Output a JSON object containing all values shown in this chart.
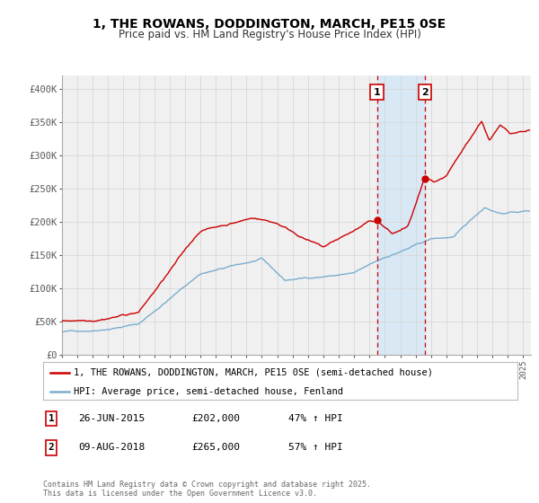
{
  "title": "1, THE ROWANS, DODDINGTON, MARCH, PE15 0SE",
  "subtitle": "Price paid vs. HM Land Registry's House Price Index (HPI)",
  "legend_line1": "1, THE ROWANS, DODDINGTON, MARCH, PE15 0SE (semi-detached house)",
  "legend_line2": "HPI: Average price, semi-detached house, Fenland",
  "sale1_label": "1",
  "sale1_date": "26-JUN-2015",
  "sale1_price": "£202,000",
  "sale1_hpi": "47% ↑ HPI",
  "sale2_label": "2",
  "sale2_date": "09-AUG-2018",
  "sale2_price": "£265,000",
  "sale2_hpi": "57% ↑ HPI",
  "footer": "Contains HM Land Registry data © Crown copyright and database right 2025.\nThis data is licensed under the Open Government Licence v3.0.",
  "red_color": "#cc0000",
  "blue_color": "#7aadcf",
  "sale1_x": 2015.49,
  "sale1_y": 202000,
  "sale2_x": 2018.6,
  "sale2_y": 265000,
  "vline1_x": 2015.49,
  "vline2_x": 2018.6,
  "ylim": [
    0,
    420000
  ],
  "xlim": [
    1995.0,
    2025.5
  ],
  "grid_color": "#d8d8d8",
  "bg_color": "#f0f0f0",
  "shade_color": "#d8e8f5"
}
